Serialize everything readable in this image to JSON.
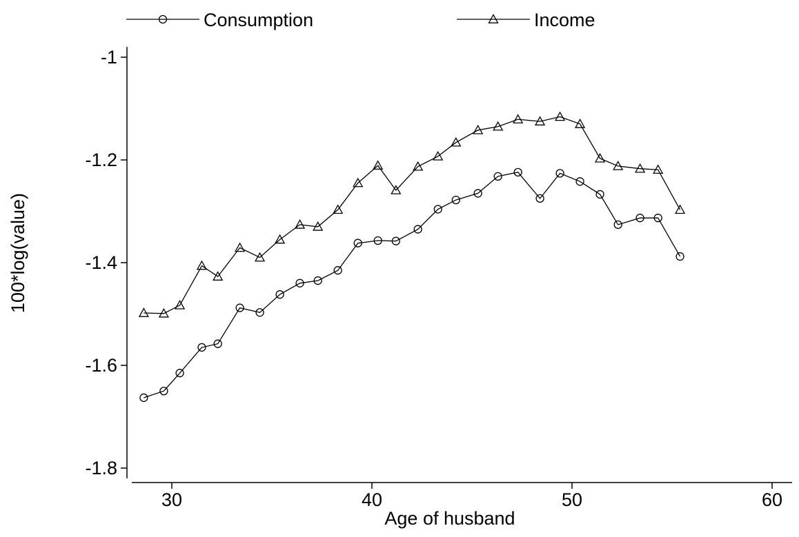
{
  "chart_data": {
    "type": "line",
    "xlabel": "Age of husband",
    "ylabel": "100*log(value)",
    "xlim": [
      28,
      61
    ],
    "ylim": [
      -1.82,
      -0.98
    ],
    "xticks": [
      30,
      40,
      50,
      60
    ],
    "yticks": [
      -1.8,
      -1.6,
      -1.4,
      -1.2,
      -1.0
    ],
    "xtick_labels": [
      "30",
      "40",
      "50",
      "60"
    ],
    "ytick_labels": [
      "-1.8",
      "-1.6",
      "-1.4",
      "-1.2",
      "-1"
    ],
    "grid": false,
    "legend_position": "top",
    "x": [
      28.6,
      29.6,
      30.4,
      31.5,
      32.3,
      33.4,
      34.4,
      35.4,
      36.4,
      37.3,
      38.3,
      39.3,
      40.3,
      41.2,
      42.3,
      43.3,
      44.2,
      45.3,
      46.3,
      47.3,
      48.4,
      49.4,
      50.4,
      51.4,
      52.3,
      53.4,
      54.3,
      55.4
    ],
    "series": [
      {
        "name": "Consumption",
        "marker": "circle",
        "color": "#000000",
        "values": [
          -1.663,
          -1.65,
          -1.615,
          -1.565,
          -1.558,
          -1.488,
          -1.497,
          -1.462,
          -1.44,
          -1.435,
          -1.415,
          -1.362,
          -1.357,
          -1.358,
          -1.335,
          -1.296,
          -1.278,
          -1.265,
          -1.232,
          -1.224,
          -1.275,
          -1.226,
          -1.242,
          -1.267,
          -1.326,
          -1.313,
          -1.313,
          -1.388
        ]
      },
      {
        "name": "Income",
        "marker": "triangle",
        "color": "#000000",
        "values": [
          -1.498,
          -1.499,
          -1.483,
          -1.406,
          -1.427,
          -1.371,
          -1.39,
          -1.355,
          -1.326,
          -1.33,
          -1.297,
          -1.245,
          -1.211,
          -1.259,
          -1.213,
          -1.193,
          -1.166,
          -1.142,
          -1.135,
          -1.121,
          -1.125,
          -1.116,
          -1.13,
          -1.197,
          -1.212,
          -1.217,
          -1.219,
          -1.297
        ]
      }
    ]
  }
}
